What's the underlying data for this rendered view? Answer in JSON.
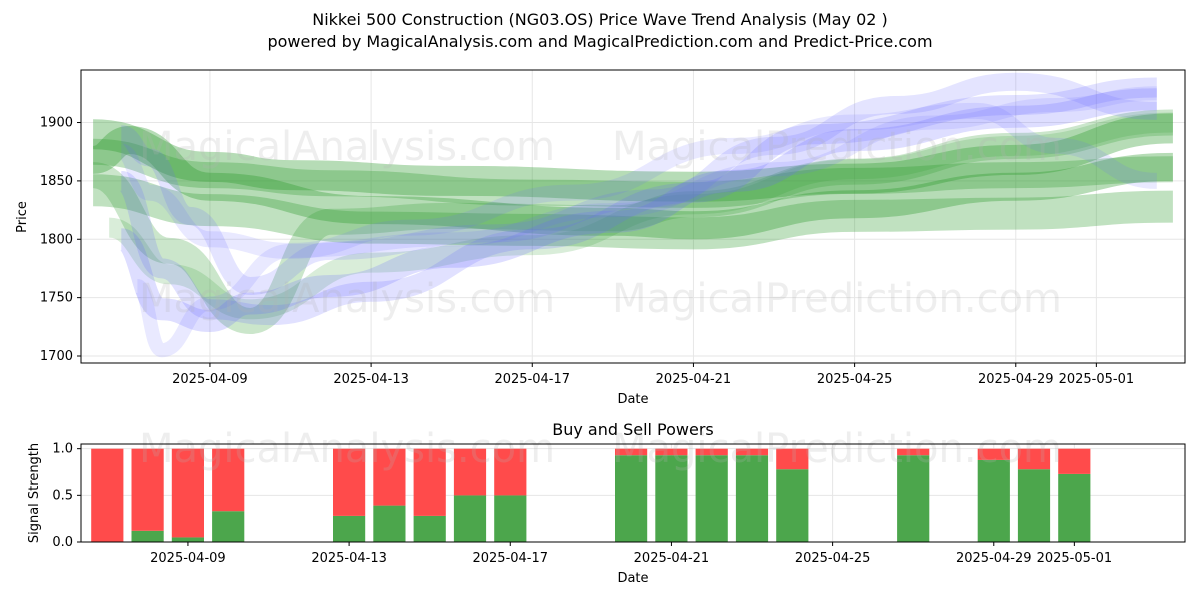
{
  "header": {
    "title": "Nikkei 500 Construction (NG03.OS) Price Wave Trend Analysis (May 02 )",
    "subtitle": "powered by MagicalAnalysis.com and MagicalPrediction.com and Predict-Price.com"
  },
  "watermarks": [
    "MagicalAnalysis.com",
    "MagicalPrediction.com"
  ],
  "colors": {
    "buy": "#4ca64c",
    "sell": "#ff4b4b",
    "green_wave": "#2e9a2e",
    "blue_wave": "#6b6bff"
  },
  "chart_data": [
    {
      "type": "area",
      "title": "",
      "xlabel": "Date",
      "ylabel": "Price",
      "ylim": [
        1694,
        1945
      ],
      "xlim_days": [
        -3.2,
        24.2
      ],
      "x_ticks": [
        {
          "day": 0,
          "label": "2025-04-09"
        },
        {
          "day": 4,
          "label": "2025-04-13"
        },
        {
          "day": 8,
          "label": "2025-04-17"
        },
        {
          "day": 12,
          "label": "2025-04-21"
        },
        {
          "day": 16,
          "label": "2025-04-25"
        },
        {
          "day": 20,
          "label": "2025-04-29"
        },
        {
          "day": 22,
          "label": "2025-05-01"
        }
      ],
      "y_ticks": [
        1700,
        1750,
        1800,
        1850,
        1900
      ],
      "grid": true,
      "series": [
        {
          "name": "green-wave-1",
          "color": "green",
          "width": 30,
          "opacity": 0.35,
          "x": [
            -2.9,
            0,
            2,
            6,
            12,
            16,
            20,
            23.9
          ],
          "y": [
            1890,
            1862,
            1855,
            1850,
            1845,
            1852,
            1868,
            1895
          ]
        },
        {
          "name": "green-wave-2",
          "color": "green",
          "width": 28,
          "opacity": 0.35,
          "x": [
            -2.9,
            -2,
            0,
            4,
            10,
            12,
            16,
            20,
            23.9
          ],
          "y": [
            1868,
            1885,
            1845,
            1825,
            1815,
            1812,
            1830,
            1845,
            1862
          ]
        },
        {
          "name": "green-wave-3",
          "color": "green",
          "width": 32,
          "opacity": 0.3,
          "x": [
            -2.9,
            0,
            4,
            8,
            12,
            16,
            20,
            23.9
          ],
          "y": [
            1842,
            1825,
            1810,
            1808,
            1805,
            1820,
            1822,
            1828
          ]
        },
        {
          "name": "green-wave-4",
          "color": "green",
          "width": 26,
          "opacity": 0.3,
          "x": [
            -2.9,
            0,
            3,
            8,
            12,
            16,
            20,
            23.9
          ],
          "y": [
            1875,
            1855,
            1848,
            1840,
            1838,
            1850,
            1855,
            1860
          ]
        },
        {
          "name": "green-wave-5",
          "color": "green",
          "width": 26,
          "opacity": 0.25,
          "x": [
            -2.9,
            -1,
            1,
            3,
            6,
            10,
            12,
            16,
            20,
            23.9
          ],
          "y": [
            1855,
            1790,
            1730,
            1815,
            1820,
            1818,
            1830,
            1858,
            1880,
            1900
          ]
        },
        {
          "name": "green-wave-6",
          "color": "green",
          "width": 20,
          "opacity": 0.18,
          "x": [
            -2.5,
            -1,
            1,
            4,
            8,
            12,
            16,
            20,
            23.9
          ],
          "y": [
            1810,
            1770,
            1740,
            1780,
            1795,
            1830,
            1860,
            1880,
            1900
          ]
        },
        {
          "name": "blue-wave-1",
          "color": "blue",
          "width": 22,
          "opacity": 0.22,
          "x": [
            -2.2,
            -1.2,
            0,
            1,
            3,
            6,
            10,
            13,
            16,
            20,
            23.5
          ],
          "y": [
            1800,
            1740,
            1730,
            1745,
            1760,
            1785,
            1815,
            1850,
            1885,
            1905,
            1920
          ]
        },
        {
          "name": "blue-wave-2",
          "color": "blue",
          "width": 20,
          "opacity": 0.2,
          "x": [
            -2.2,
            -1.2,
            0,
            1.5,
            4,
            8,
            12,
            15,
            20,
            23.5
          ],
          "y": [
            1850,
            1775,
            1740,
            1735,
            1755,
            1800,
            1840,
            1890,
            1915,
            1930
          ]
        },
        {
          "name": "blue-wave-3",
          "color": "blue",
          "width": 18,
          "opacity": 0.18,
          "x": [
            -2.2,
            -1.5,
            -0.5,
            1,
            3,
            7,
            11,
            14,
            17,
            20,
            23.5
          ],
          "y": [
            1890,
            1870,
            1820,
            1760,
            1790,
            1805,
            1835,
            1880,
            1915,
            1935,
            1910
          ]
        },
        {
          "name": "blue-wave-4",
          "color": "blue",
          "width": 16,
          "opacity": 0.15,
          "x": [
            -2.2,
            -1.5,
            0,
            2,
            5,
            9,
            13,
            16,
            19,
            21,
            23.5
          ],
          "y": [
            1875,
            1840,
            1800,
            1790,
            1810,
            1840,
            1880,
            1900,
            1910,
            1880,
            1850
          ]
        },
        {
          "name": "blue-wave-5",
          "color": "blue",
          "width": 14,
          "opacity": 0.15,
          "x": [
            -1.8,
            -1.2,
            0,
            2,
            6,
            10,
            14,
            18,
            21,
            23.5
          ],
          "y": [
            1760,
            1705,
            1745,
            1790,
            1800,
            1825,
            1860,
            1900,
            1915,
            1925
          ]
        }
      ]
    },
    {
      "type": "bar",
      "title": "Buy and Sell Powers",
      "xlabel": "Date",
      "ylabel": "Signal Strength",
      "ylim": [
        0,
        1.05
      ],
      "y_ticks": [
        0.0,
        0.5,
        1.0
      ],
      "x_ticks": [
        {
          "day": 0,
          "label": "2025-04-09"
        },
        {
          "day": 4,
          "label": "2025-04-13"
        },
        {
          "day": 8,
          "label": "2025-04-17"
        },
        {
          "day": 12,
          "label": "2025-04-21"
        },
        {
          "day": 16,
          "label": "2025-04-25"
        },
        {
          "day": 20,
          "label": "2025-04-29"
        },
        {
          "day": 22,
          "label": "2025-05-01"
        }
      ],
      "series": [
        {
          "name": "Buy",
          "x_days": [
            -2,
            -1,
            0,
            1,
            4,
            5,
            6,
            7,
            8,
            11,
            12,
            13,
            14,
            15,
            18,
            20,
            21,
            22
          ],
          "values": [
            0.0,
            0.12,
            0.05,
            0.33,
            0.28,
            0.39,
            0.28,
            0.5,
            0.5,
            0.93,
            0.93,
            0.93,
            0.93,
            0.78,
            0.93,
            0.88,
            0.78,
            0.73
          ]
        },
        {
          "name": "Sell",
          "x_days": [
            -2,
            -1,
            0,
            1,
            4,
            5,
            6,
            7,
            8,
            11,
            12,
            13,
            14,
            15,
            18,
            20,
            21,
            22
          ],
          "values": [
            1.0,
            0.88,
            0.95,
            0.67,
            0.72,
            0.61,
            0.72,
            0.5,
            0.5,
            0.07,
            0.07,
            0.07,
            0.07,
            0.22,
            0.07,
            0.12,
            0.22,
            0.27
          ]
        }
      ]
    }
  ]
}
